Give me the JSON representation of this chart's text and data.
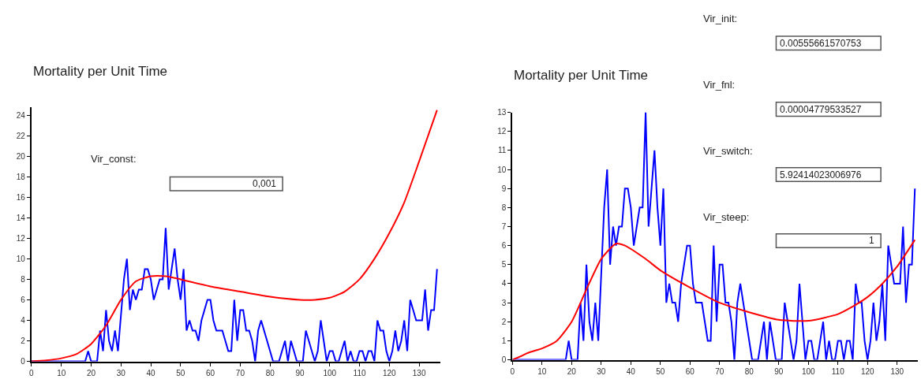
{
  "chart_data": [
    {
      "type": "line",
      "title": "Mortality per Unit Time",
      "xlim": [
        0,
        137
      ],
      "ylim": [
        0,
        24.8
      ],
      "xticks": [
        0,
        10,
        20,
        30,
        40,
        50,
        60,
        70,
        80,
        90,
        100,
        110,
        120,
        130
      ],
      "yticks": [
        0,
        2,
        4,
        6,
        8,
        10,
        12,
        14,
        16,
        18,
        20,
        22,
        24
      ],
      "annotations": [
        "Vir_const:",
        "0,001"
      ],
      "series": [
        {
          "color": "#0000ff",
          "x": [
            0,
            18,
            19,
            20,
            22,
            23,
            24,
            25,
            26,
            27,
            28,
            29,
            31,
            32,
            33,
            34,
            35,
            36,
            37,
            38,
            39,
            40,
            41,
            42,
            43,
            44,
            45,
            46,
            47,
            48,
            49,
            50,
            51,
            52,
            53,
            54,
            55,
            56,
            57,
            58,
            59,
            60,
            61,
            62,
            63,
            64,
            65,
            66,
            67,
            68,
            69,
            70,
            71,
            72,
            73,
            74,
            75,
            76,
            77,
            78,
            79,
            80,
            81,
            82,
            83,
            84,
            85,
            86,
            87,
            88,
            89,
            90,
            91,
            92,
            93,
            94,
            95,
            96,
            97,
            98,
            99,
            100,
            101,
            102,
            103,
            104,
            105,
            106,
            107,
            108,
            109,
            110,
            111,
            112,
            113,
            114,
            115,
            116,
            117,
            118,
            119,
            120,
            121,
            122,
            123,
            124,
            125,
            126,
            127,
            128,
            129,
            130,
            131,
            132,
            133,
            134,
            135,
            136
          ],
          "values": [
            0,
            0,
            1,
            0,
            0,
            3,
            1,
            5,
            2,
            1,
            3,
            1,
            8,
            10,
            5,
            7,
            6,
            7,
            7,
            9,
            9,
            8,
            6,
            7,
            8,
            8,
            13,
            7,
            9,
            11,
            8,
            6,
            9,
            3,
            4,
            3,
            3,
            2,
            4,
            5,
            6,
            6,
            4,
            3,
            3,
            3,
            2,
            1,
            1,
            6,
            2,
            5,
            5,
            3,
            3,
            2,
            0,
            3,
            4,
            3,
            2,
            1,
            0,
            0,
            0,
            1,
            2,
            0,
            2,
            1,
            0,
            0,
            0,
            3,
            2,
            1,
            0,
            1,
            4,
            2,
            0,
            1,
            1,
            0,
            0,
            1,
            2,
            0,
            1,
            0,
            0,
            1,
            1,
            0,
            1,
            1,
            0,
            4,
            3,
            3,
            1,
            0,
            1,
            3,
            1,
            2,
            4,
            1,
            6,
            5,
            4,
            4,
            4,
            7,
            3,
            5,
            5,
            9
          ]
        },
        {
          "color": "#ff0000",
          "x": [
            0,
            5,
            10,
            15,
            20,
            25,
            30,
            35,
            40,
            45,
            50,
            60,
            70,
            80,
            90,
            95,
            100,
            105,
            110,
            115,
            120,
            125,
            130,
            136
          ],
          "values": [
            0,
            0.1,
            0.3,
            0.7,
            1.7,
            3.5,
            6,
            7.8,
            8.3,
            8.3,
            8,
            7.3,
            6.8,
            6.3,
            6,
            6,
            6.2,
            6.8,
            8,
            10,
            12.5,
            15.5,
            19.5,
            24.5
          ]
        }
      ]
    },
    {
      "type": "line",
      "title": "Mortality per Unit Time",
      "xlim": [
        0,
        137
      ],
      "ylim": [
        0,
        13
      ],
      "xticks": [
        0,
        10,
        20,
        30,
        40,
        50,
        60,
        70,
        80,
        90,
        100,
        110,
        120,
        130
      ],
      "yticks": [
        0,
        1,
        2,
        3,
        4,
        5,
        6,
        7,
        8,
        9,
        10,
        11,
        12,
        13
      ],
      "annotations": [
        "Vir_init:",
        "0.00555661570753",
        "Vir_fnl:",
        "0.00004779533527",
        "Vir_switch:",
        "5.92414023006976",
        "Vir_steep:",
        "1"
      ],
      "series": [
        {
          "color": "#0000ff",
          "x": [
            0,
            18,
            19,
            20,
            22,
            23,
            24,
            25,
            26,
            27,
            28,
            29,
            31,
            32,
            33,
            34,
            35,
            36,
            37,
            38,
            39,
            40,
            41,
            42,
            43,
            44,
            45,
            46,
            47,
            48,
            49,
            50,
            51,
            52,
            53,
            54,
            55,
            56,
            57,
            58,
            59,
            60,
            61,
            62,
            63,
            64,
            65,
            66,
            67,
            68,
            69,
            70,
            71,
            72,
            73,
            74,
            75,
            76,
            77,
            78,
            79,
            80,
            81,
            82,
            83,
            84,
            85,
            86,
            87,
            88,
            89,
            90,
            91,
            92,
            93,
            94,
            95,
            96,
            97,
            98,
            99,
            100,
            101,
            102,
            103,
            104,
            105,
            106,
            107,
            108,
            109,
            110,
            111,
            112,
            113,
            114,
            115,
            116,
            117,
            118,
            119,
            120,
            121,
            122,
            123,
            124,
            125,
            126,
            127,
            128,
            129,
            130,
            131,
            132,
            133,
            134,
            135,
            136
          ],
          "values": [
            0,
            0,
            1,
            0,
            0,
            3,
            1,
            5,
            2,
            1,
            3,
            1,
            8,
            10,
            5,
            7,
            6,
            7,
            7,
            9,
            9,
            8,
            6,
            7,
            8,
            8,
            13,
            7,
            9,
            11,
            8,
            6,
            9,
            3,
            4,
            3,
            3,
            2,
            4,
            5,
            6,
            6,
            4,
            3,
            3,
            3,
            2,
            1,
            1,
            6,
            2,
            5,
            5,
            3,
            3,
            2,
            0,
            3,
            4,
            3,
            2,
            1,
            0,
            0,
            0,
            1,
            2,
            0,
            2,
            1,
            0,
            0,
            0,
            3,
            2,
            1,
            0,
            1,
            4,
            2,
            0,
            1,
            1,
            0,
            0,
            1,
            2,
            0,
            1,
            0,
            0,
            1,
            1,
            0,
            1,
            1,
            0,
            4,
            3,
            3,
            1,
            0,
            1,
            3,
            1,
            2,
            4,
            1,
            6,
            5,
            4,
            4,
            4,
            7,
            3,
            5,
            5,
            9
          ]
        },
        {
          "color": "#ff0000",
          "x": [
            0,
            3,
            5,
            8,
            10,
            15,
            20,
            25,
            30,
            35,
            38,
            45,
            50,
            60,
            70,
            80,
            90,
            100,
            110,
            115,
            120,
            125,
            130,
            136
          ],
          "values": [
            0,
            0.2,
            0.35,
            0.5,
            0.6,
            1,
            2,
            3.7,
            5.3,
            6.1,
            6,
            5.3,
            4.7,
            3.8,
            3,
            2.5,
            2.1,
            2.05,
            2.4,
            2.8,
            3.3,
            4,
            4.9,
            6.3
          ]
        }
      ]
    }
  ]
}
